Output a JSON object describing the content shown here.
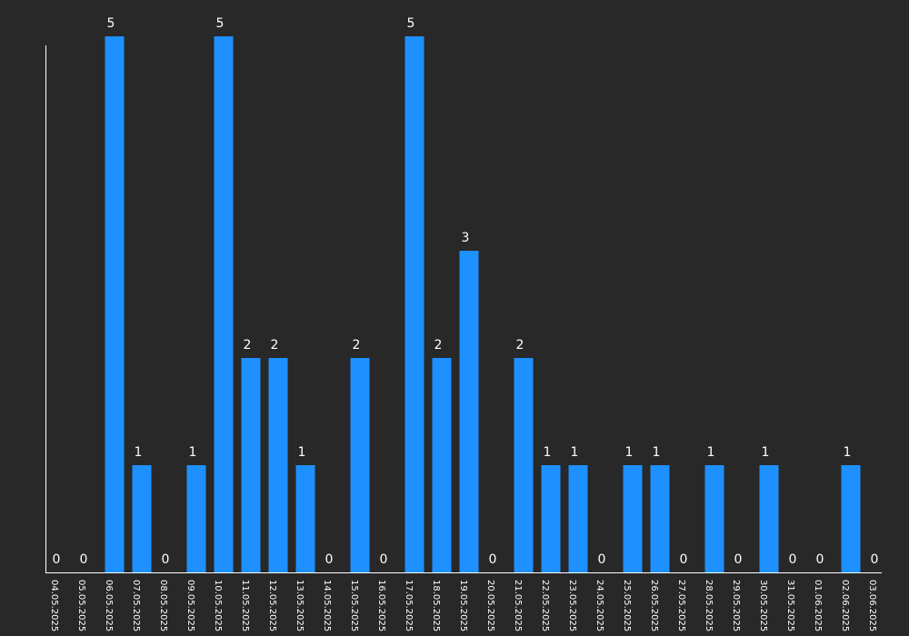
{
  "chart_data": {
    "type": "bar",
    "categories": [
      "04.05.2025",
      "05.05.2025",
      "06.05.2025",
      "07.05.2025",
      "08.05.2025",
      "09.05.2025",
      "10.05.2025",
      "11.05.2025",
      "12.05.2025",
      "13.05.2025",
      "14.05.2025",
      "15.05.2025",
      "16.05.2025",
      "17.05.2025",
      "18.05.2025",
      "19.05.2025",
      "20.05.2025",
      "21.05.2025",
      "22.05.2025",
      "23.05.2025",
      "24.05.2025",
      "25.05.2025",
      "26.05.2025",
      "27.05.2025",
      "28.05.2025",
      "29.05.2025",
      "30.05.2025",
      "31.05.2025",
      "01.06.2025",
      "02.06.2025",
      "03.06.2025"
    ],
    "values": [
      0,
      0,
      5,
      1,
      0,
      1,
      5,
      2,
      2,
      1,
      0,
      2,
      0,
      5,
      2,
      3,
      0,
      2,
      1,
      1,
      0,
      1,
      1,
      0,
      1,
      0,
      1,
      0,
      0,
      1,
      0
    ],
    "ylim": [
      0,
      5
    ],
    "data_labels": true,
    "grid": false,
    "legend": "none",
    "colors": {
      "background": "#282828",
      "bar": "#1e90ff",
      "text": "#ffffff",
      "axis": "#ffffff"
    }
  }
}
